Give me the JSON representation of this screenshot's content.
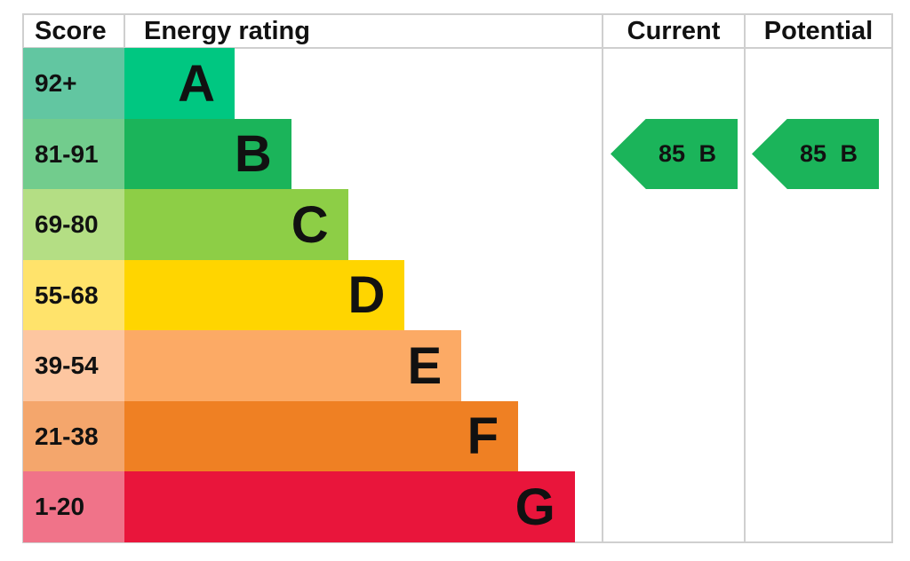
{
  "chart_data": {
    "type": "table",
    "headers": {
      "score": "Score",
      "rating": "Energy rating",
      "current": "Current",
      "potential": "Potential"
    },
    "bands": [
      {
        "letter": "A",
        "range": "92+",
        "color": "#00c781",
        "score_color": "#62c6a1"
      },
      {
        "letter": "B",
        "range": "81-91",
        "color": "#1bb45a",
        "score_color": "#72cc8d"
      },
      {
        "letter": "C",
        "range": "69-80",
        "color": "#8dce46",
        "score_color": "#b4de84"
      },
      {
        "letter": "D",
        "range": "55-68",
        "color": "#ffd500",
        "score_color": "#ffe36b"
      },
      {
        "letter": "E",
        "range": "39-54",
        "color": "#fcaa65",
        "score_color": "#fdc6a0"
      },
      {
        "letter": "F",
        "range": "21-38",
        "color": "#ef8023",
        "score_color": "#f4a66c"
      },
      {
        "letter": "G",
        "range": "1-20",
        "color": "#e9153b",
        "score_color": "#f07389"
      }
    ],
    "current": {
      "score": 85,
      "band": "B",
      "label": "85 B",
      "color": "#1bb45a"
    },
    "potential": {
      "score": 85,
      "band": "B",
      "label": "85 B",
      "color": "#1bb45a"
    }
  }
}
